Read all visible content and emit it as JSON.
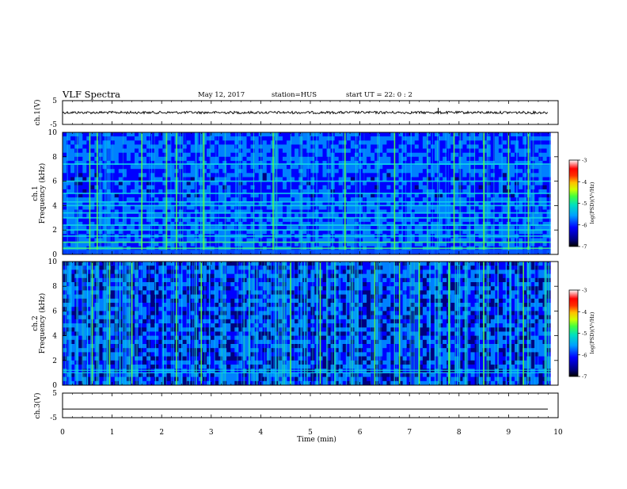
{
  "header": {
    "title": "VLF Spectra",
    "date": "May 12, 2017",
    "station": "station=HUS",
    "start": "start  UT =   22: 0  : 2"
  },
  "chart_data": [
    {
      "type": "line",
      "name": "ch.1 waveform",
      "ylabel": "ch.1(V)",
      "ylim": [
        -5,
        5
      ],
      "yticks": [
        "5",
        "-5"
      ],
      "xlim": [
        0,
        10
      ],
      "signal_level": 0,
      "spike_at_min": 7.58
    },
    {
      "type": "heatmap",
      "name": "ch.1 spectrogram",
      "ylabel_line1": "ch.1",
      "ylabel_line2": "Frequency  (kHz)",
      "ylim": [
        0,
        10
      ],
      "yticks": [
        "0",
        "2",
        "4",
        "6",
        "8",
        "10"
      ],
      "xlim": [
        0,
        9.85
      ],
      "horizontal_bands_khz": [
        0.5,
        1.0,
        1.5,
        2.0,
        2.4,
        3.0,
        3.4,
        4.0,
        4.3,
        5.0,
        6.0,
        7.4
      ],
      "strong_vertical_lines_min": [
        0.55,
        0.7,
        1.6,
        2.1,
        2.3,
        2.85,
        4.25,
        5.7,
        6.7,
        7.9,
        8.5,
        9.0,
        9.4
      ],
      "colorbar": {
        "label": "log(PSD)(V²/Hz)",
        "ticks": [
          "-3",
          "-4",
          "-5",
          "-6",
          "-7"
        ],
        "range": [
          -7,
          -3
        ]
      }
    },
    {
      "type": "heatmap",
      "name": "ch.2 spectrogram",
      "ylabel_line1": "ch.2",
      "ylabel_line2": "Frequency  (kHz)",
      "ylim": [
        0,
        10
      ],
      "yticks": [
        "0",
        "2",
        "4",
        "6",
        "8",
        "10"
      ],
      "xlim": [
        0,
        9.85
      ],
      "horizontal_bands_khz": [
        1.0,
        1.2
      ],
      "strong_vertical_lines_min": [
        0.6,
        0.95,
        1.4,
        2.3,
        2.8,
        4.6,
        5.2,
        6.3,
        6.8,
        7.2,
        7.8,
        8.5,
        9.3
      ],
      "colorbar": {
        "label": "log(PSD)(V²/Hz)",
        "ticks": [
          "-3",
          "-4",
          "-5",
          "-6",
          "-7"
        ],
        "range": [
          -7,
          -3
        ]
      }
    },
    {
      "type": "line",
      "name": "ch.3 waveform",
      "ylabel": "ch.3(V)",
      "ylim": [
        -5,
        5
      ],
      "yticks": [
        "5",
        "-5"
      ],
      "xlim": [
        0,
        10
      ],
      "signal_level": -1.5
    }
  ],
  "xaxis": {
    "label": "Time  (min)",
    "ticks": [
      "0",
      "1",
      "2",
      "3",
      "4",
      "5",
      "6",
      "7",
      "8",
      "9",
      "10"
    ]
  },
  "colors": {
    "cmap": [
      "#00007f",
      "#0000ff",
      "#0080ff",
      "#00e0ff",
      "#20f0a0",
      "#40ff40",
      "#c0ff00",
      "#ffe000",
      "#ff6000",
      "#ff0000",
      "#ffe0e0"
    ]
  }
}
